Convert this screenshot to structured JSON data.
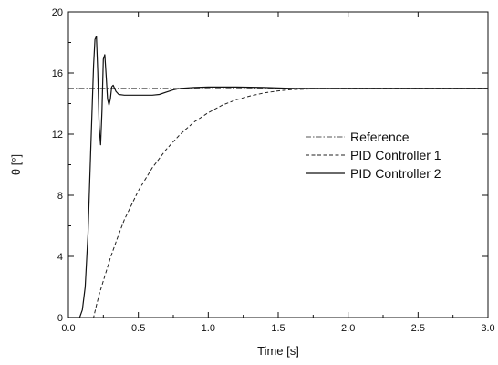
{
  "chart_data": {
    "type": "line",
    "title": "",
    "xlabel": "Time [s]",
    "ylabel": "θ [°]",
    "xlim": [
      0.0,
      3.0
    ],
    "ylim": [
      0,
      20
    ],
    "xticks": [
      0.0,
      0.5,
      1.0,
      1.5,
      2.0,
      2.5,
      3.0
    ],
    "xtick_labels": [
      "0.0",
      "0.5",
      "1.0",
      "1.5",
      "2.0",
      "2.5",
      "3.0"
    ],
    "yticks": [
      0,
      4,
      8,
      12,
      16,
      20
    ],
    "ytick_labels": [
      "0",
      "4",
      "8",
      "12",
      "16",
      "20"
    ],
    "grid": false,
    "legend_position": "center-right",
    "series": [
      {
        "name": "Reference",
        "style": "dash-dot",
        "color": "#555555",
        "x": [
          0.0,
          3.0
        ],
        "y": [
          15,
          15
        ]
      },
      {
        "name": "PID Controller 1",
        "style": "dashed",
        "color": "#222222",
        "x": [
          0.0,
          0.18,
          0.2,
          0.22,
          0.25,
          0.3,
          0.35,
          0.4,
          0.5,
          0.6,
          0.7,
          0.8,
          0.9,
          1.0,
          1.1,
          1.2,
          1.3,
          1.4,
          1.5,
          1.6,
          1.8,
          2.0,
          2.5,
          3.0
        ],
        "y": [
          0,
          0,
          0.8,
          1.5,
          2.4,
          3.9,
          5.2,
          6.4,
          8.3,
          9.8,
          11.0,
          12.0,
          12.8,
          13.4,
          13.9,
          14.25,
          14.5,
          14.7,
          14.83,
          14.92,
          14.98,
          15.0,
          15.0,
          15.0
        ]
      },
      {
        "name": "PID Controller 2",
        "style": "solid",
        "color": "#111111",
        "x": [
          0.0,
          0.08,
          0.1,
          0.12,
          0.14,
          0.16,
          0.18,
          0.19,
          0.2,
          0.21,
          0.22,
          0.23,
          0.24,
          0.25,
          0.26,
          0.27,
          0.28,
          0.29,
          0.3,
          0.31,
          0.32,
          0.34,
          0.36,
          0.4,
          0.45,
          0.5,
          0.6,
          0.65,
          0.7,
          0.75,
          0.8,
          0.9,
          1.0,
          1.2,
          1.4,
          1.5,
          1.6,
          1.8,
          2.0,
          2.5,
          3.0
        ],
        "y": [
          0,
          0,
          0.5,
          2.0,
          5.5,
          11.0,
          16.5,
          18.2,
          18.4,
          16.0,
          12.5,
          11.3,
          13.5,
          16.9,
          17.2,
          15.8,
          14.3,
          13.9,
          14.3,
          15.1,
          15.2,
          14.8,
          14.6,
          14.55,
          14.55,
          14.55,
          14.55,
          14.6,
          14.75,
          14.9,
          15.0,
          15.05,
          15.08,
          15.08,
          15.05,
          15.02,
          15.0,
          15.0,
          15.0,
          15.0,
          15.0
        ]
      }
    ]
  }
}
